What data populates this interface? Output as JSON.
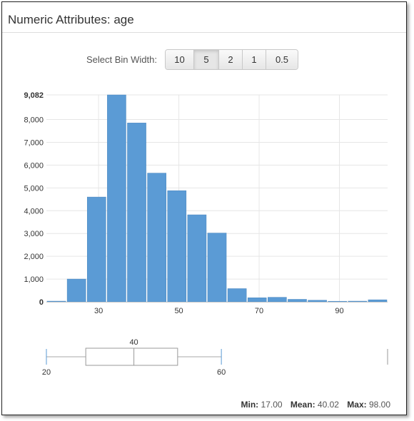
{
  "title": "Numeric Attributes: age",
  "bin_selector": {
    "label": "Select Bin Width:",
    "options": [
      "10",
      "5",
      "2",
      "1",
      "0.5"
    ],
    "selected": "5"
  },
  "chart_data": {
    "type": "bar",
    "bin_width": 5,
    "bins": [
      {
        "start": 17,
        "end": 22,
        "value": 30
      },
      {
        "start": 22,
        "end": 27,
        "value": 1000
      },
      {
        "start": 27,
        "end": 32,
        "value": 4600
      },
      {
        "start": 32,
        "end": 37,
        "value": 9082
      },
      {
        "start": 37,
        "end": 42,
        "value": 7850
      },
      {
        "start": 42,
        "end": 47,
        "value": 5650
      },
      {
        "start": 47,
        "end": 52,
        "value": 4880
      },
      {
        "start": 52,
        "end": 57,
        "value": 3820
      },
      {
        "start": 57,
        "end": 62,
        "value": 3020
      },
      {
        "start": 62,
        "end": 67,
        "value": 580
      },
      {
        "start": 67,
        "end": 72,
        "value": 180
      },
      {
        "start": 72,
        "end": 77,
        "value": 200
      },
      {
        "start": 77,
        "end": 82,
        "value": 110
      },
      {
        "start": 82,
        "end": 87,
        "value": 70
      },
      {
        "start": 87,
        "end": 92,
        "value": 25
      },
      {
        "start": 92,
        "end": 97,
        "value": 30
      },
      {
        "start": 97,
        "end": 102,
        "value": 90
      }
    ],
    "xlim": [
      17,
      102
    ],
    "ylim": [
      0,
      9082
    ],
    "x_ticks": [
      "30",
      "50",
      "70",
      "90"
    ],
    "y_ticks": [
      "0",
      "1,000",
      "2,000",
      "3,000",
      "4,000",
      "5,000",
      "6,000",
      "7,000",
      "8,000",
      "9,082"
    ],
    "bar_color": "#5b9bd5",
    "grid": true
  },
  "boxplot": {
    "whisker_low": 20,
    "q1": 29,
    "median": 40,
    "q3": 50,
    "whisker_high": 60,
    "outlier_max": 98,
    "labels": {
      "low": "20",
      "median": "40",
      "high": "60"
    }
  },
  "stats": {
    "min_label": "Min:",
    "min": "17.00",
    "mean_label": "Mean:",
    "mean": "40.02",
    "max_label": "Max:",
    "max": "98.00"
  }
}
